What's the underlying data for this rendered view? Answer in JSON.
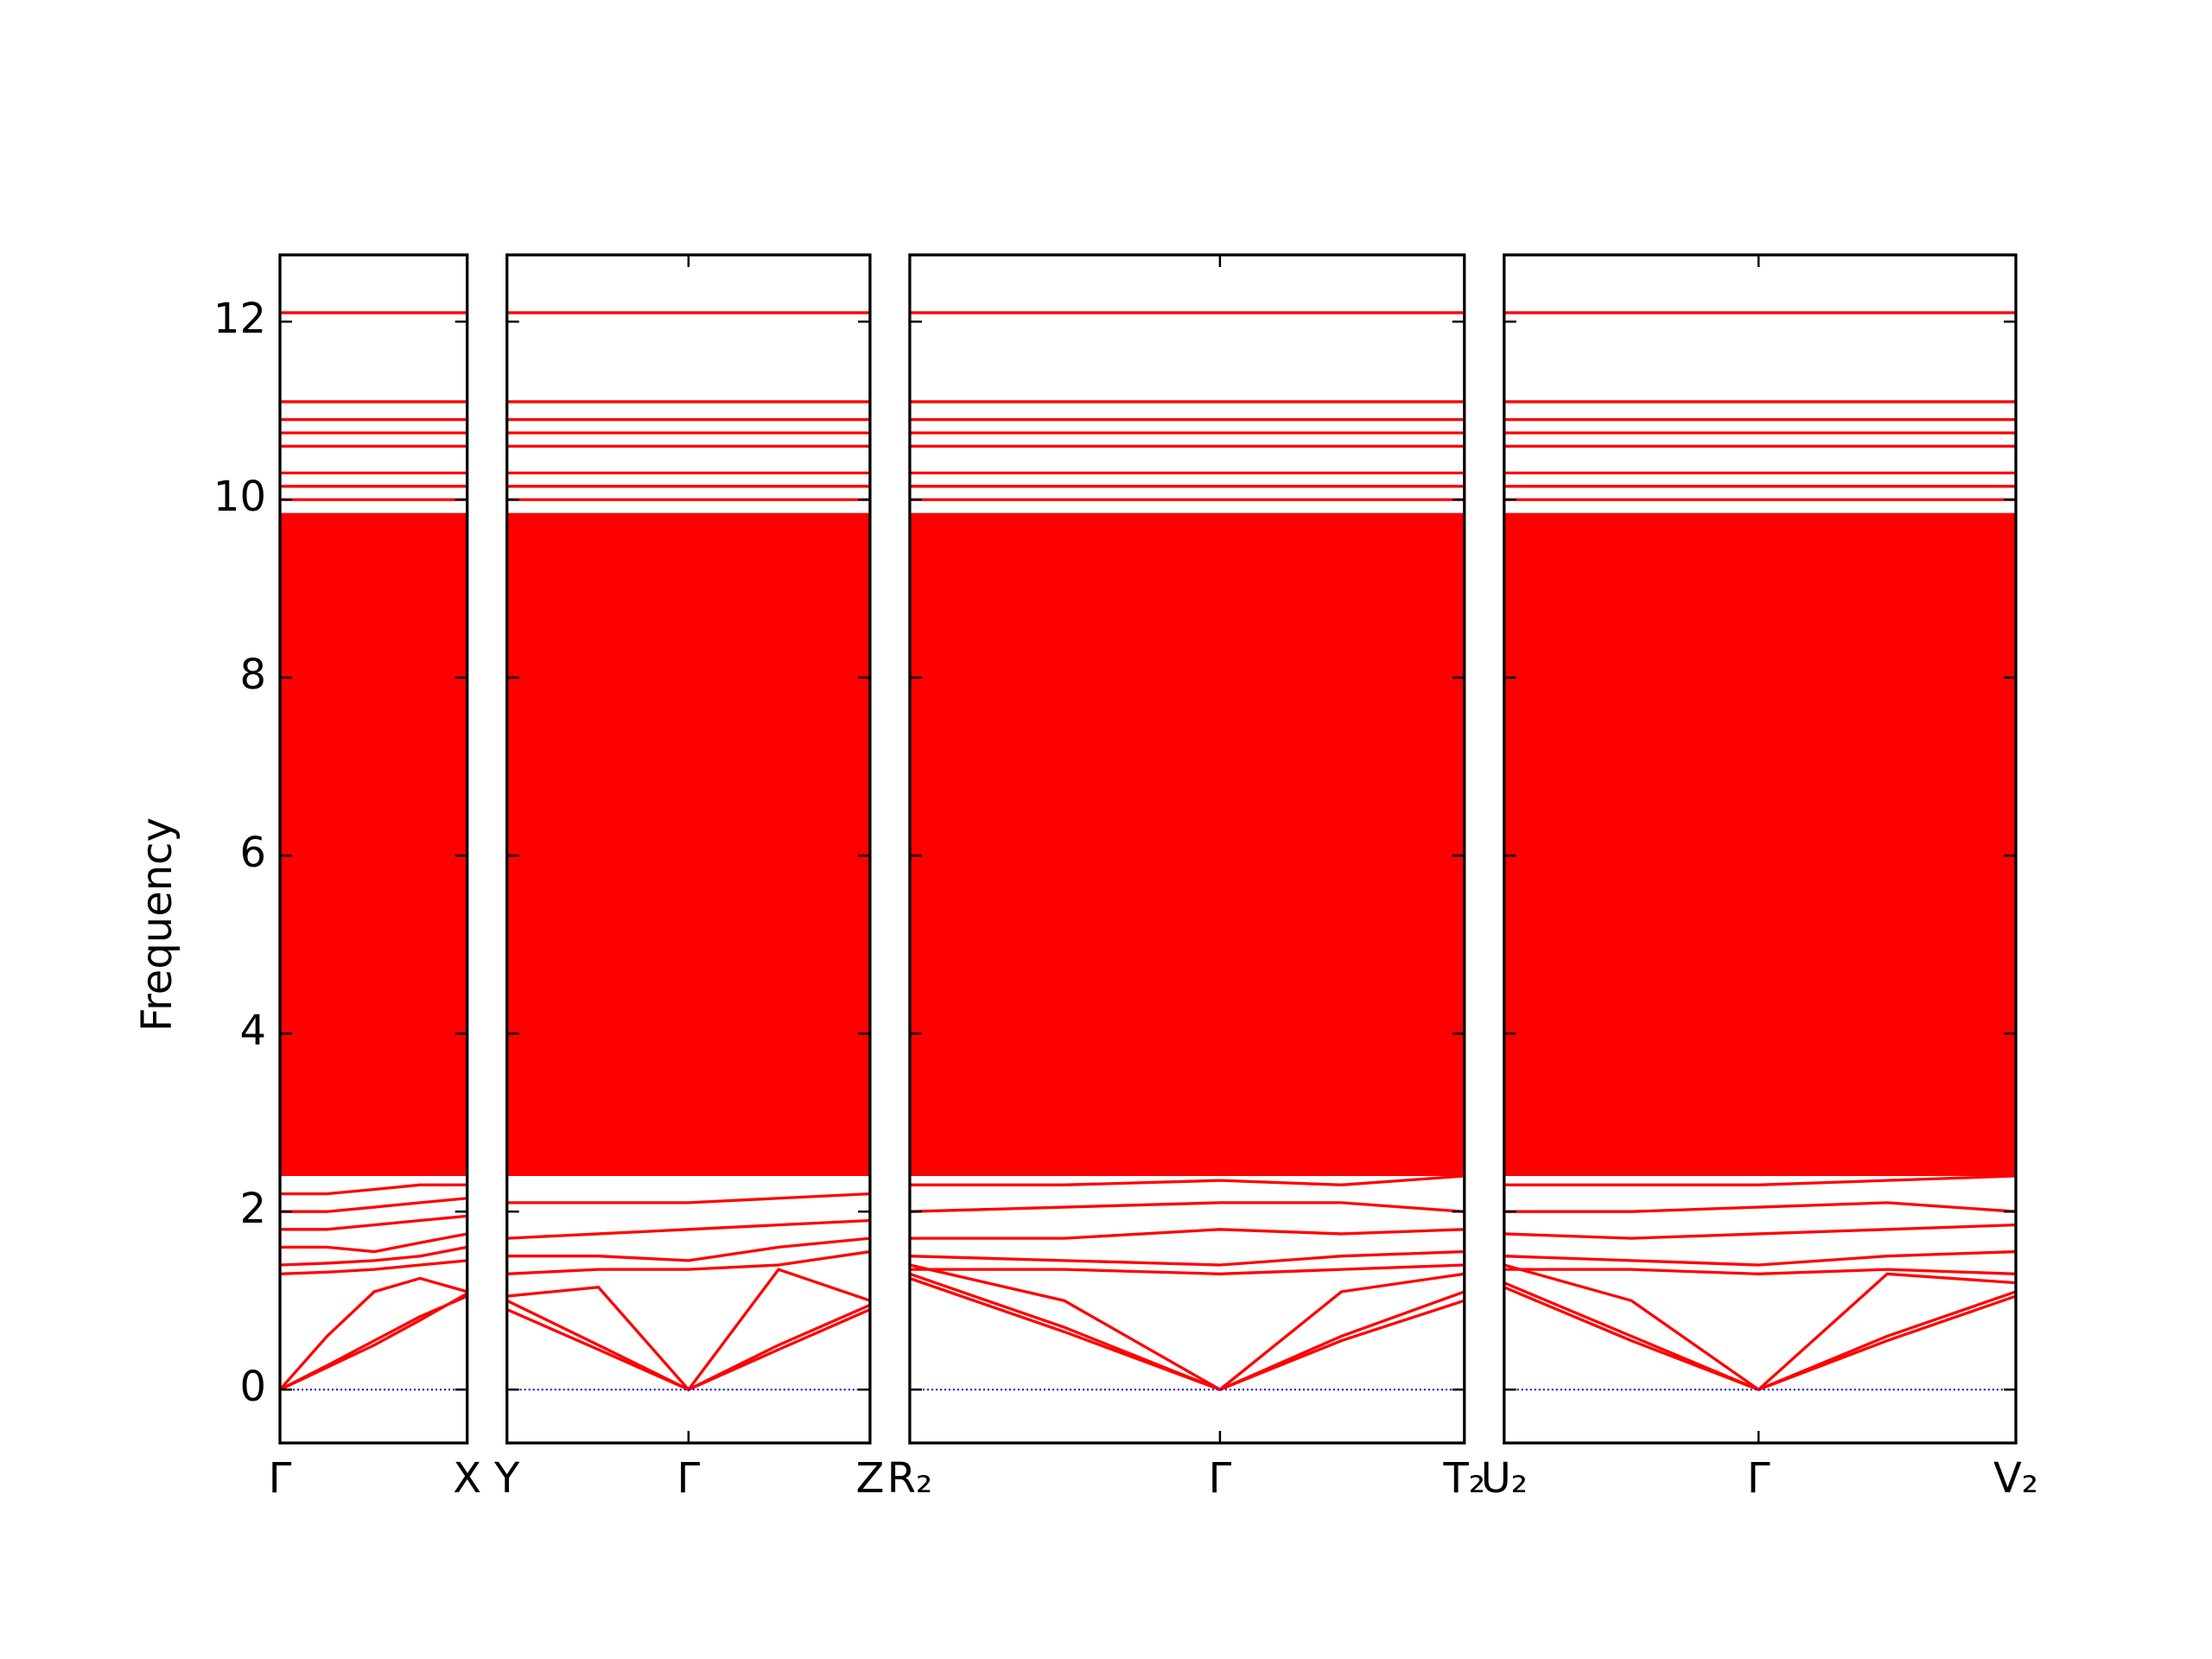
{
  "chart_data": {
    "type": "line",
    "ylabel": "Frequency",
    "ylim": [
      -0.6,
      12.75
    ],
    "yticks": [
      0,
      2,
      4,
      6,
      8,
      10,
      12
    ],
    "color": "#ff0000",
    "zero_line": {
      "value": 0,
      "color": "#0000cc"
    },
    "band_fill": {
      "lower": 2.4,
      "upper": 9.85
    },
    "flat_bands": [
      10.0,
      10.15,
      10.3,
      10.6,
      10.75,
      10.9,
      11.1,
      12.1
    ],
    "panels": [
      {
        "xlim": [
          0,
          1.31
        ],
        "xticks": [
          {
            "value": 0,
            "label": "Γ"
          },
          {
            "value": 1.31,
            "label": "X"
          }
        ],
        "x": [
          0,
          0.33,
          0.66,
          0.98,
          1.31
        ],
        "series": [
          {
            "values": [
              0,
              0.27,
              0.55,
              0.82,
              1.05
            ]
          },
          {
            "values": [
              0,
              0.25,
              0.5,
              0.78,
              1.08
            ]
          },
          {
            "values": [
              0,
              0.6,
              1.1,
              1.25,
              1.1
            ]
          },
          {
            "values": [
              1.3,
              1.32,
              1.35,
              1.4,
              1.45
            ]
          },
          {
            "values": [
              1.4,
              1.42,
              1.45,
              1.5,
              1.6
            ]
          },
          {
            "values": [
              1.6,
              1.6,
              1.55,
              1.65,
              1.75
            ]
          },
          {
            "values": [
              1.8,
              1.8,
              1.85,
              1.9,
              1.95
            ]
          },
          {
            "values": [
              2.0,
              2.0,
              2.05,
              2.1,
              2.15
            ]
          },
          {
            "values": [
              2.2,
              2.2,
              2.25,
              2.3,
              2.3
            ]
          }
        ]
      },
      {
        "xlim": [
          0,
          2.54
        ],
        "xticks": [
          {
            "value": 0,
            "label": "Y"
          },
          {
            "value": 1.27,
            "label": "Γ"
          },
          {
            "value": 2.54,
            "label": "Z"
          }
        ],
        "x": [
          0,
          0.64,
          1.27,
          1.9,
          2.54
        ],
        "series": [
          {
            "values": [
              1.0,
              0.5,
              0,
              0.5,
              0.95
            ]
          },
          {
            "values": [
              0.9,
              0.45,
              0,
              0.45,
              0.9
            ]
          },
          {
            "values": [
              1.05,
              1.15,
              0,
              1.35,
              1.0
            ]
          },
          {
            "values": [
              1.3,
              1.35,
              1.35,
              1.4,
              1.55
            ]
          },
          {
            "values": [
              1.5,
              1.5,
              1.45,
              1.6,
              1.7
            ]
          },
          {
            "values": [
              1.7,
              1.75,
              1.8,
              1.85,
              1.9
            ]
          },
          {
            "values": [
              2.1,
              2.1,
              2.1,
              2.15,
              2.2
            ]
          }
        ]
      },
      {
        "xlim": [
          0,
          3.88
        ],
        "xticks": [
          {
            "value": 0,
            "label": "R₂"
          },
          {
            "value": 2.17,
            "label": "Γ"
          },
          {
            "value": 3.88,
            "label": "T₂"
          }
        ],
        "x": [
          0,
          1.08,
          2.17,
          3.02,
          3.88
        ],
        "series": [
          {
            "values": [
              1.3,
              0.7,
              0,
              0.6,
              1.1
            ]
          },
          {
            "values": [
              1.25,
              0.65,
              0,
              0.55,
              1.0
            ]
          },
          {
            "values": [
              1.4,
              1.0,
              0,
              1.1,
              1.3
            ]
          },
          {
            "values": [
              1.35,
              1.35,
              1.3,
              1.35,
              1.4
            ]
          },
          {
            "values": [
              1.5,
              1.45,
              1.4,
              1.5,
              1.55
            ]
          },
          {
            "values": [
              1.7,
              1.7,
              1.8,
              1.75,
              1.8
            ]
          },
          {
            "values": [
              2.0,
              2.05,
              2.1,
              2.1,
              2.0
            ]
          },
          {
            "values": [
              2.3,
              2.3,
              2.35,
              2.3,
              2.4
            ]
          }
        ]
      },
      {
        "xlim": [
          0,
          3.58
        ],
        "xticks": [
          {
            "value": 0,
            "label": "U₂"
          },
          {
            "value": 1.78,
            "label": "Γ"
          },
          {
            "value": 3.58,
            "label": "V₂"
          }
        ],
        "x": [
          0,
          0.89,
          1.78,
          2.68,
          3.58
        ],
        "series": [
          {
            "values": [
              1.2,
              0.6,
              0,
              0.6,
              1.1
            ]
          },
          {
            "values": [
              1.15,
              0.55,
              0,
              0.55,
              1.05
            ]
          },
          {
            "values": [
              1.4,
              1.0,
              0,
              1.3,
              1.2
            ]
          },
          {
            "values": [
              1.35,
              1.35,
              1.3,
              1.35,
              1.3
            ]
          },
          {
            "values": [
              1.5,
              1.45,
              1.4,
              1.5,
              1.55
            ]
          },
          {
            "values": [
              1.75,
              1.7,
              1.75,
              1.8,
              1.85
            ]
          },
          {
            "values": [
              2.0,
              2.0,
              2.05,
              2.1,
              2.0
            ]
          },
          {
            "values": [
              2.3,
              2.3,
              2.3,
              2.35,
              2.4
            ]
          }
        ]
      }
    ]
  }
}
